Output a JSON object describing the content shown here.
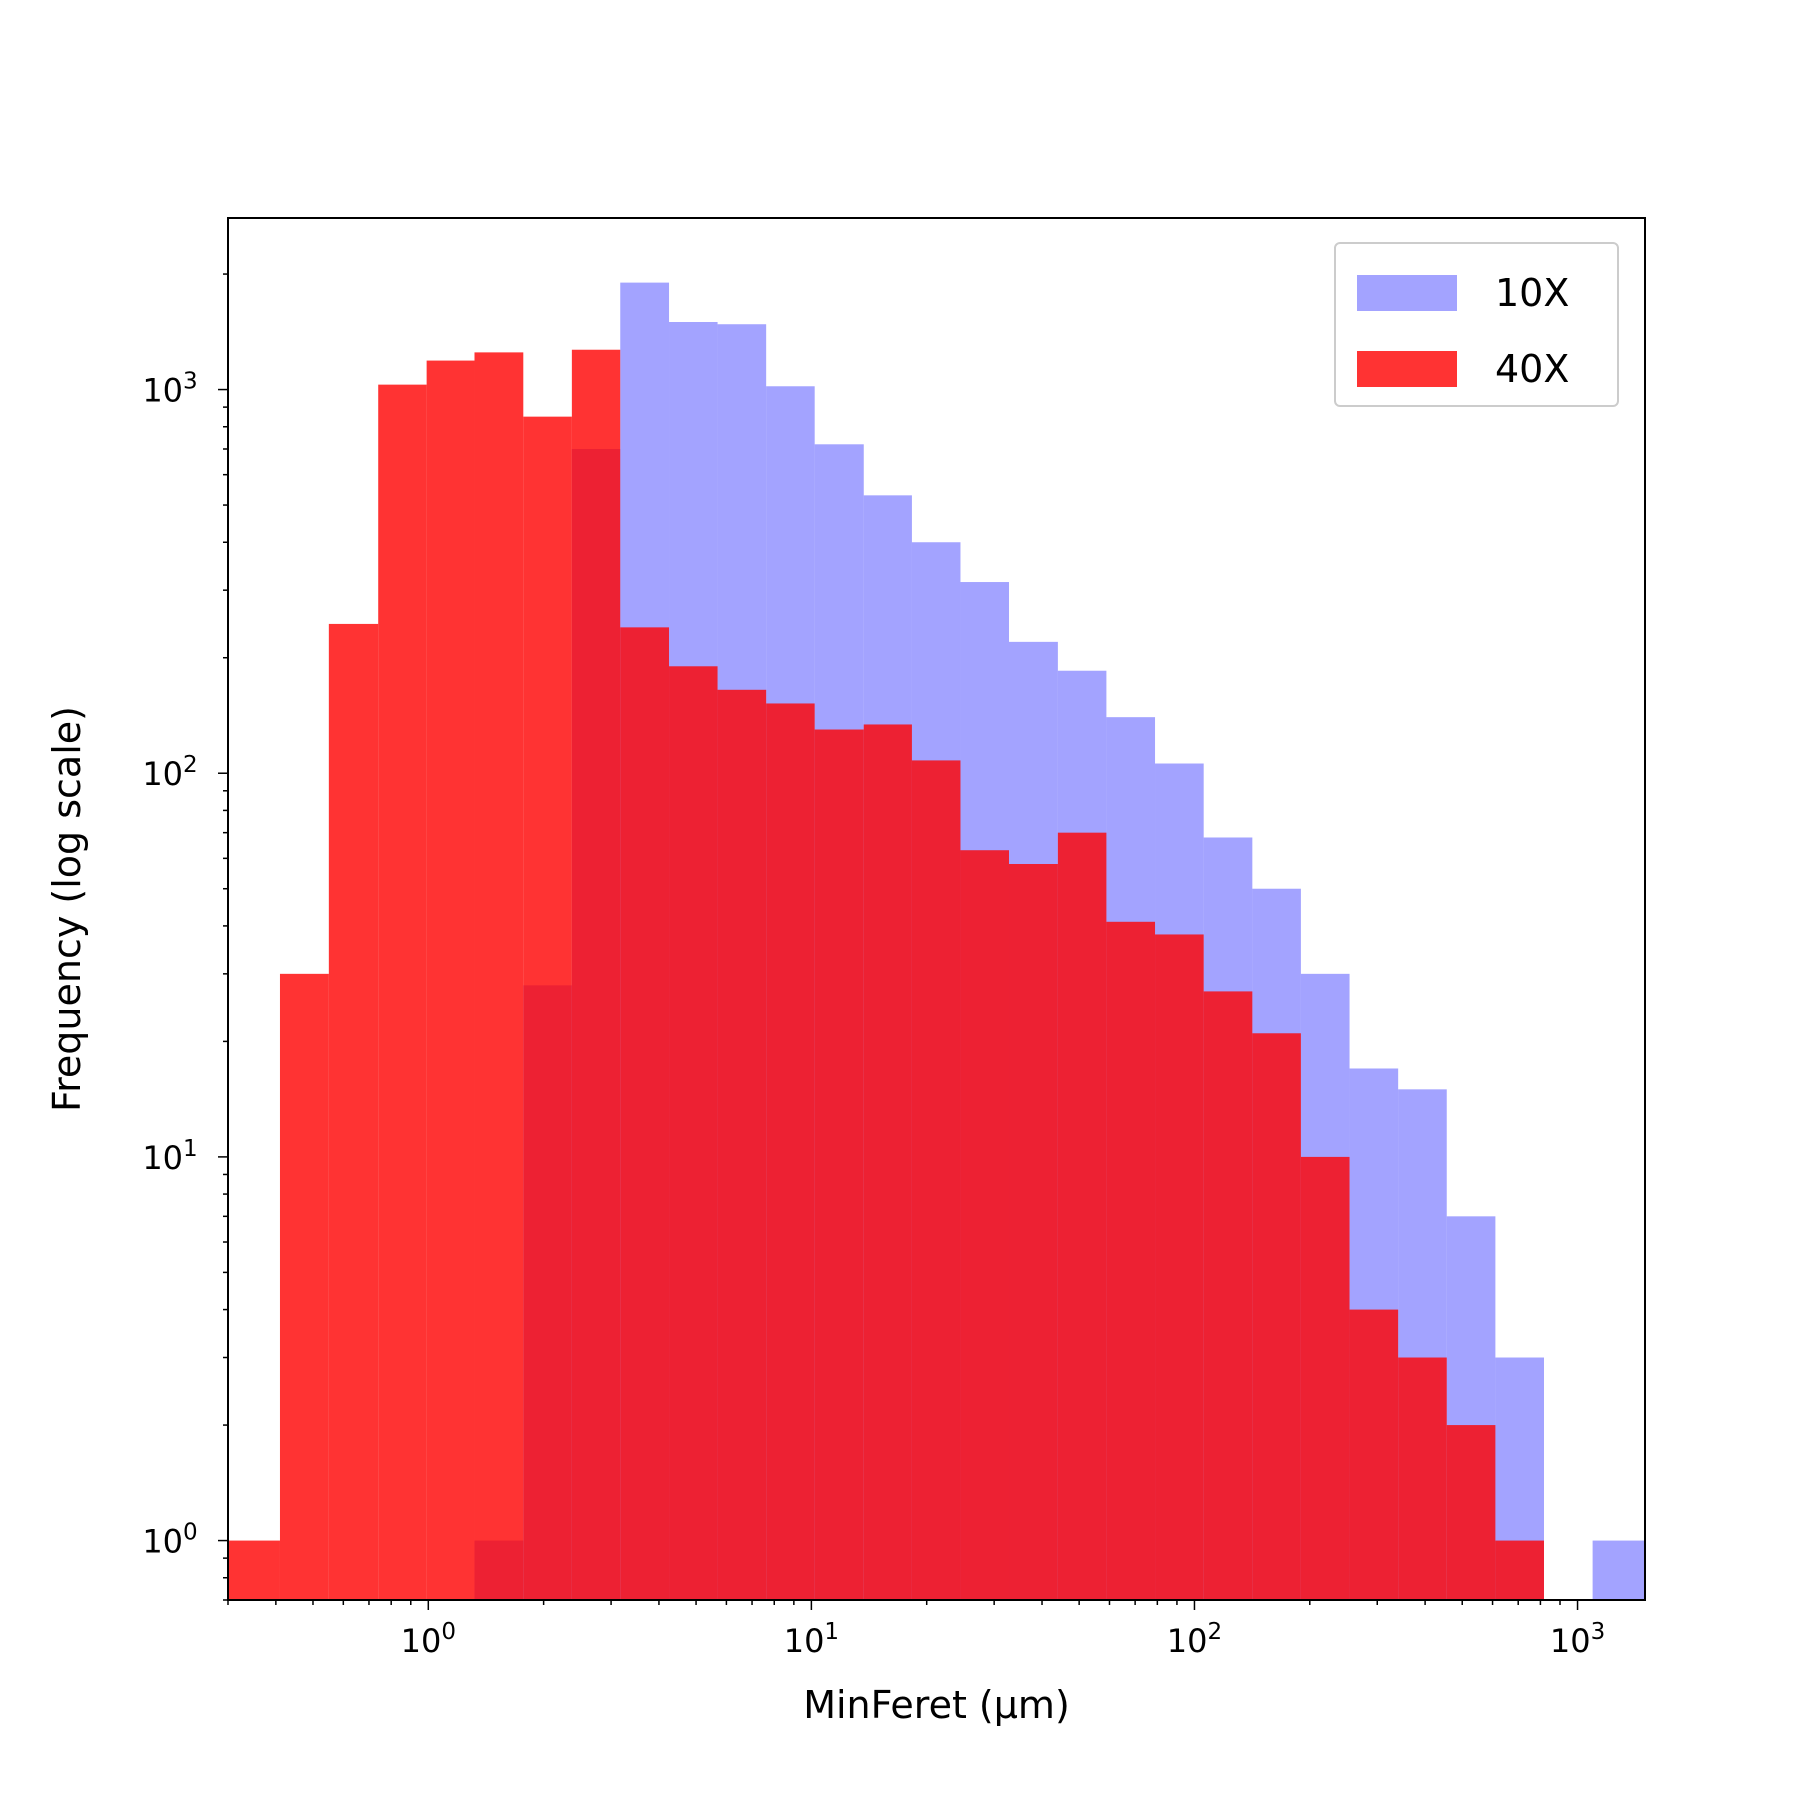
{
  "chart_data": {
    "type": "bar",
    "subtype": "histogram",
    "title": "",
    "xlabel": "MinFeret (µm)",
    "ylabel": "Frequency (log scale)",
    "xscale": "log",
    "yscale": "log",
    "xlim": [
      0.3,
      1500
    ],
    "ylim": [
      0.7,
      2800
    ],
    "x_ticks": [
      {
        "value": 1,
        "base": "10",
        "exp": "0"
      },
      {
        "value": 10,
        "base": "10",
        "exp": "1"
      },
      {
        "value": 100,
        "base": "10",
        "exp": "2"
      },
      {
        "value": 1000,
        "base": "10",
        "exp": "3"
      }
    ],
    "y_ticks": [
      {
        "value": 1,
        "base": "10",
        "exp": "0"
      },
      {
        "value": 10,
        "base": "10",
        "exp": "1"
      },
      {
        "value": 100,
        "base": "10",
        "exp": "2"
      },
      {
        "value": 1000,
        "base": "10",
        "exp": "3"
      }
    ],
    "grid": false,
    "legend_position": "top-right",
    "series": [
      {
        "name": "10X",
        "color": "#6666ff",
        "bins": [
          {
            "x0": 1.32,
            "x1": 1.77,
            "y": 1
          },
          {
            "x0": 1.77,
            "x1": 2.37,
            "y": 28
          },
          {
            "x0": 2.37,
            "x1": 3.17,
            "y": 700
          },
          {
            "x0": 3.17,
            "x1": 4.25,
            "y": 1900
          },
          {
            "x0": 4.25,
            "x1": 5.69,
            "y": 1500
          },
          {
            "x0": 5.69,
            "x1": 7.62,
            "y": 1480
          },
          {
            "x0": 7.62,
            "x1": 10.2,
            "y": 1020
          },
          {
            "x0": 10.2,
            "x1": 13.7,
            "y": 720
          },
          {
            "x0": 13.7,
            "x1": 18.3,
            "y": 530
          },
          {
            "x0": 18.3,
            "x1": 24.5,
            "y": 400
          },
          {
            "x0": 24.5,
            "x1": 32.8,
            "y": 315
          },
          {
            "x0": 32.8,
            "x1": 44.0,
            "y": 220
          },
          {
            "x0": 44.0,
            "x1": 58.9,
            "y": 185
          },
          {
            "x0": 58.9,
            "x1": 78.9,
            "y": 140
          },
          {
            "x0": 78.9,
            "x1": 105.7,
            "y": 106
          },
          {
            "x0": 105.7,
            "x1": 141.6,
            "y": 68
          },
          {
            "x0": 141.6,
            "x1": 189.6,
            "y": 50
          },
          {
            "x0": 189.6,
            "x1": 254.0,
            "y": 30
          },
          {
            "x0": 254.0,
            "x1": 340.2,
            "y": 17
          },
          {
            "x0": 340.2,
            "x1": 455.6,
            "y": 15
          },
          {
            "x0": 455.6,
            "x1": 610.3,
            "y": 7
          },
          {
            "x0": 610.3,
            "x1": 817.4,
            "y": 3
          },
          {
            "x0": 817.4,
            "x1": 1094.8,
            "y": 0
          },
          {
            "x0": 1094.8,
            "x1": 1500,
            "y": 1
          }
        ]
      },
      {
        "name": "40X",
        "color": "#ff0000",
        "bins": [
          {
            "x0": 0.3,
            "x1": 0.41,
            "y": 1
          },
          {
            "x0": 0.41,
            "x1": 0.55,
            "y": 30
          },
          {
            "x0": 0.55,
            "x1": 0.74,
            "y": 245
          },
          {
            "x0": 0.74,
            "x1": 0.99,
            "y": 1030
          },
          {
            "x0": 0.99,
            "x1": 1.32,
            "y": 1190
          },
          {
            "x0": 1.32,
            "x1": 1.77,
            "y": 1250
          },
          {
            "x0": 1.77,
            "x1": 2.37,
            "y": 850
          },
          {
            "x0": 2.37,
            "x1": 3.17,
            "y": 1270
          },
          {
            "x0": 3.17,
            "x1": 4.25,
            "y": 240
          },
          {
            "x0": 4.25,
            "x1": 5.69,
            "y": 190
          },
          {
            "x0": 5.69,
            "x1": 7.62,
            "y": 165
          },
          {
            "x0": 7.62,
            "x1": 10.2,
            "y": 152
          },
          {
            "x0": 10.2,
            "x1": 13.7,
            "y": 130
          },
          {
            "x0": 13.7,
            "x1": 18.3,
            "y": 134
          },
          {
            "x0": 18.3,
            "x1": 24.5,
            "y": 108
          },
          {
            "x0": 24.5,
            "x1": 32.8,
            "y": 63
          },
          {
            "x0": 32.8,
            "x1": 44.0,
            "y": 58
          },
          {
            "x0": 44.0,
            "x1": 58.9,
            "y": 70
          },
          {
            "x0": 58.9,
            "x1": 78.9,
            "y": 41
          },
          {
            "x0": 78.9,
            "x1": 105.7,
            "y": 38
          },
          {
            "x0": 105.7,
            "x1": 141.6,
            "y": 27
          },
          {
            "x0": 141.6,
            "x1": 189.6,
            "y": 21
          },
          {
            "x0": 189.6,
            "x1": 254.0,
            "y": 10
          },
          {
            "x0": 254.0,
            "x1": 340.2,
            "y": 4
          },
          {
            "x0": 340.2,
            "x1": 455.6,
            "y": 3
          },
          {
            "x0": 455.6,
            "x1": 610.3,
            "y": 2
          },
          {
            "x0": 610.3,
            "x1": 817.4,
            "y": 1
          }
        ]
      }
    ]
  }
}
